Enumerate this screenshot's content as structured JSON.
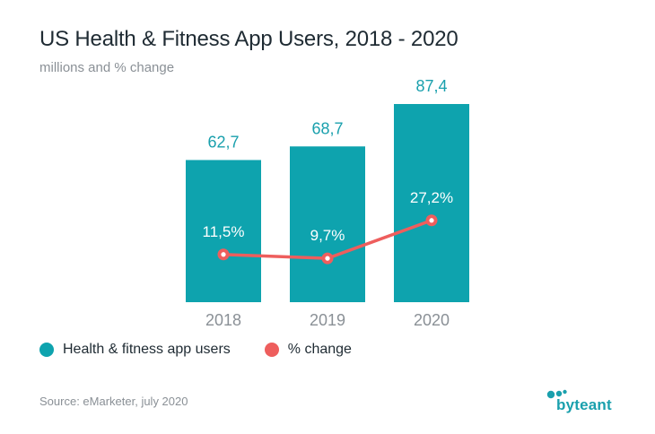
{
  "title": "US Health & Fitness App Users, 2018 - 2020",
  "subtitle": "millions and % change",
  "legend": {
    "users_label": "Health & fitness app users",
    "change_label": "% change"
  },
  "source": "Source: eMarketer, july 2020",
  "brand": "byteant",
  "colors": {
    "bar": "#0ea3ae",
    "line": "#ee5e5d",
    "bar_label": "#1aa0ad",
    "tick": "#8a9096"
  },
  "chart_data": {
    "type": "bar",
    "categories": [
      "2018",
      "2019",
      "2020"
    ],
    "series": [
      {
        "name": "Health & fitness app users",
        "type": "bar",
        "values": [
          62.7,
          68.7,
          87.4
        ],
        "labels": [
          "62,7",
          "68,7",
          "87,4"
        ]
      },
      {
        "name": "% change",
        "type": "line",
        "values": [
          11.5,
          9.7,
          27.2
        ],
        "labels": [
          "11,5%",
          "9,7%",
          "27,2%"
        ]
      }
    ],
    "title": "US Health & Fitness App Users, 2018 - 2020",
    "subtitle": "millions and % change",
    "grid": false,
    "legend_position": "bottom-left"
  }
}
